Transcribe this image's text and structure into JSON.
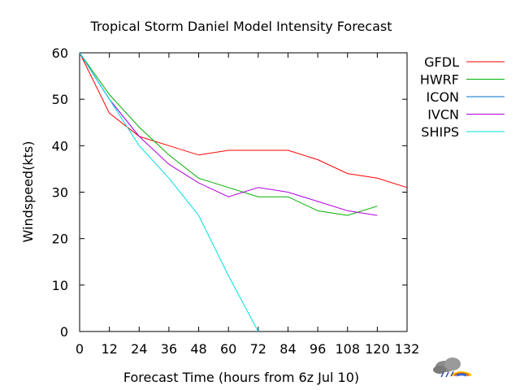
{
  "chart_data": {
    "type": "line",
    "title": "Tropical Storm Daniel Model Intensity Forecast",
    "xlabel": "Forecast Time  (hours from 6z Jul 10)",
    "ylabel": "Windspeed(kts)",
    "xlim": [
      0,
      132
    ],
    "ylim": [
      0,
      60
    ],
    "xticks": [
      0,
      12,
      24,
      36,
      48,
      60,
      72,
      84,
      96,
      108,
      120,
      132
    ],
    "yticks": [
      0,
      10,
      20,
      30,
      40,
      50,
      60
    ],
    "grid": false,
    "legend": "right",
    "series": [
      {
        "name": "GFDL",
        "color": "#ff0000",
        "x": [
          0,
          12,
          24,
          36,
          48,
          60,
          72,
          84,
          96,
          108,
          120,
          132
        ],
        "y": [
          60,
          47,
          42,
          40,
          38,
          39,
          39,
          39,
          37,
          34,
          33,
          31
        ]
      },
      {
        "name": "HWRF",
        "color": "#00b000",
        "x": [
          0,
          12,
          24,
          36,
          48,
          60,
          72,
          84,
          96,
          108,
          120
        ],
        "y": [
          60,
          51,
          44,
          38,
          33,
          31,
          29,
          29,
          26,
          25,
          27
        ]
      },
      {
        "name": "ICON",
        "color": "#0070d0",
        "x": [
          0,
          12,
          24
        ],
        "y": [
          60,
          50,
          42
        ]
      },
      {
        "name": "IVCN",
        "color": "#b000e0",
        "x": [
          0,
          12,
          24,
          36,
          48,
          60,
          72,
          84,
          96,
          108,
          120
        ],
        "y": [
          60,
          50,
          42,
          36,
          32,
          29,
          31,
          30,
          28,
          26,
          25
        ]
      },
      {
        "name": "SHIPS",
        "color": "#00e0e0",
        "x": [
          0,
          12,
          24,
          36,
          48,
          60,
          72
        ],
        "y": [
          60,
          50,
          40,
          33,
          25,
          12,
          0
        ]
      }
    ]
  },
  "logo": {
    "icon": "weather-storm-logo-icon"
  }
}
